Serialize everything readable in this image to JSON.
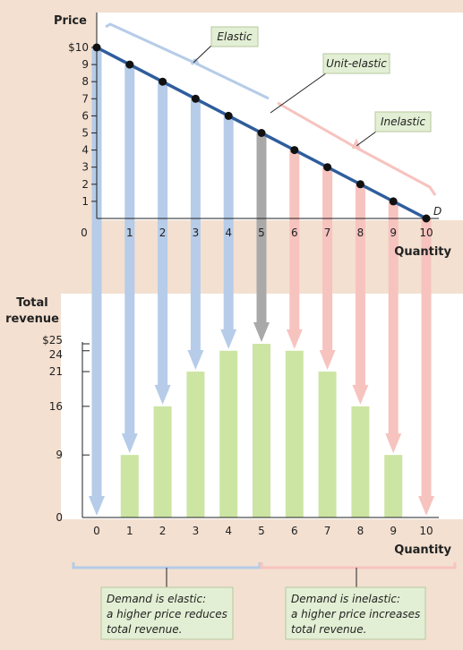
{
  "chart_data": [
    {
      "type": "line",
      "ylabel": "Price",
      "xlabel": "Quantity",
      "x": [
        0,
        1,
        2,
        3,
        4,
        5,
        6,
        7,
        8,
        9,
        10
      ],
      "price": [
        10,
        9,
        8,
        7,
        6,
        5,
        4,
        3,
        2,
        1,
        0
      ],
      "xlim": [
        0,
        10
      ],
      "ylim": [
        0,
        10
      ],
      "y_tick_labels": [
        "$10",
        "9",
        "8",
        "7",
        "6",
        "5",
        "4",
        "3",
        "2",
        "1"
      ],
      "x_tick_labels": [
        "0",
        "1",
        "2",
        "3",
        "4",
        "5",
        "6",
        "7",
        "8",
        "9",
        "10"
      ],
      "curve_label": "D",
      "annotations": {
        "elastic": "Elastic",
        "unit_elastic": "Unit-elastic",
        "inelastic": "Inelastic"
      },
      "colors": {
        "line": "#2f5d9c",
        "point": "#111111"
      }
    },
    {
      "type": "bar",
      "ylabel": "Total revenue",
      "xlabel": "Quantity",
      "categories": [
        "0",
        "1",
        "2",
        "3",
        "4",
        "5",
        "6",
        "7",
        "8",
        "9",
        "10"
      ],
      "values": [
        0,
        9,
        16,
        21,
        24,
        25,
        24,
        21,
        16,
        9,
        0
      ],
      "y_ticks": [
        0,
        9,
        16,
        21,
        24,
        25
      ],
      "y_tick_labels": [
        "0",
        "9",
        "16",
        "21",
        "24",
        "$25"
      ],
      "ylim": [
        0,
        25
      ],
      "colors": {
        "bar": "#cce5a3",
        "elastic_arrow": "#b6cce8",
        "unit_arrow": "#a9a9a9",
        "inelastic_arrow": "#f7c3bf"
      }
    }
  ],
  "notes": {
    "elastic": [
      "Demand is elastic:",
      "a higher price reduces",
      "total revenue."
    ],
    "inelastic": [
      "Demand is inelastic:",
      "a higher price increases",
      "total revenue."
    ]
  }
}
